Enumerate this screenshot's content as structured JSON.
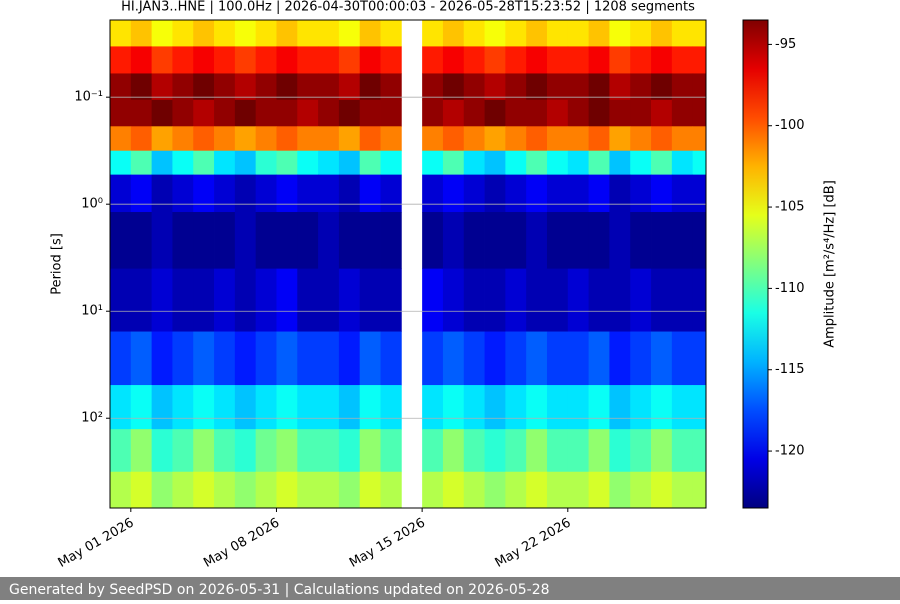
{
  "chart_data": {
    "type": "spectrogram",
    "title": "HI.JAN3..HNE | 100.0Hz | 2026-04-30T00:00:03 - 2026-05-28T15:23:52 | 1208 segments",
    "ylabel": "Period [s]",
    "colorbar_label": "Amplitude [m²/s⁴/Hz] [dB]",
    "footer": "Generated by SeedPSD on 2026-05-31 | Calculations updated on 2026-05-28",
    "colormap": "jet",
    "yscale": "log",
    "grid": true,
    "xlim": [
      "2026-04-30T00:00:03",
      "2026-05-28T15:23:52"
    ],
    "xticks": [
      {
        "value": "2026-05-01",
        "label": "May 01 2026"
      },
      {
        "value": "2026-05-08",
        "label": "May 08 2026"
      },
      {
        "value": "2026-05-15",
        "label": "May 15 2026"
      },
      {
        "value": "2026-05-22",
        "label": "May 22 2026"
      }
    ],
    "ylim": [
      690,
      0.019
    ],
    "yticks": [
      {
        "value": 0.1,
        "label": "10⁻¹"
      },
      {
        "value": 1,
        "label": "10⁰"
      },
      {
        "value": 10,
        "label": "10¹"
      },
      {
        "value": 100,
        "label": "10²"
      }
    ],
    "zlim": [
      -123.5,
      -93.5
    ],
    "zticks": [
      -95,
      -100,
      -105,
      -110,
      -115,
      -120
    ],
    "x": [
      "2026-04-30",
      "2026-05-01",
      "2026-05-02",
      "2026-05-03",
      "2026-05-04",
      "2026-05-05",
      "2026-05-06",
      "2026-05-07",
      "2026-05-08",
      "2026-05-09",
      "2026-05-10",
      "2026-05-11",
      "2026-05-12",
      "2026-05-13",
      "2026-05-14",
      "2026-05-15",
      "2026-05-16",
      "2026-05-17",
      "2026-05-18",
      "2026-05-19",
      "2026-05-20",
      "2026-05-21",
      "2026-05-22",
      "2026-05-23",
      "2026-05-24",
      "2026-05-25",
      "2026-05-26",
      "2026-05-27",
      "2026-05-28"
    ],
    "periods": [
      0.025,
      0.045,
      0.08,
      0.14,
      0.25,
      0.4,
      0.7,
      2,
      8,
      30,
      80,
      200,
      500
    ],
    "z": [
      [
        -104,
        -103,
        -105,
        -104,
        -103,
        -104,
        -105,
        -104,
        -103,
        -104,
        -104,
        -105,
        -103,
        -104,
        null,
        -104,
        -103,
        -104,
        -105,
        -104,
        -103,
        -104,
        -104,
        -103,
        -105,
        -104,
        -103,
        -104,
        -104
      ],
      [
        -98,
        -97,
        -99,
        -98,
        -97,
        -98,
        -99,
        -98,
        -97,
        -98,
        -98,
        -99,
        -97,
        -98,
        null,
        -98,
        -97,
        -98,
        -99,
        -98,
        -97,
        -98,
        -98,
        -97,
        -99,
        -98,
        -97,
        -98,
        -98
      ],
      [
        -94,
        -93,
        -95,
        -94,
        -93,
        -94,
        -95,
        -94,
        -93,
        -94,
        -94,
        -95,
        -93,
        -94,
        null,
        -94,
        -93,
        -94,
        -95,
        -94,
        -93,
        -94,
        -94,
        -93,
        -95,
        -94,
        -93,
        -94,
        -94
      ],
      [
        -94,
        -94,
        -93,
        -94,
        -95,
        -94,
        -93,
        -94,
        -94,
        -95,
        -94,
        -93,
        -94,
        -94,
        null,
        -94,
        -95,
        -94,
        -93,
        -94,
        -94,
        -95,
        -94,
        -93,
        -94,
        -94,
        -95,
        -94,
        -94
      ],
      [
        -101,
        -100,
        -102,
        -101,
        -100,
        -101,
        -102,
        -101,
        -100,
        -101,
        -101,
        -102,
        -100,
        -101,
        null,
        -101,
        -100,
        -101,
        -102,
        -101,
        -100,
        -101,
        -101,
        -100,
        -102,
        -101,
        -100,
        -101,
        -101
      ],
      [
        -112,
        -110,
        -114,
        -112,
        -110,
        -113,
        -114,
        -111,
        -110,
        -112,
        -113,
        -114,
        -110,
        -112,
        null,
        -112,
        -110,
        -113,
        -114,
        -112,
        -110,
        -112,
        -113,
        -110,
        -114,
        -112,
        -110,
        -113,
        -112
      ],
      [
        -121,
        -120,
        -122,
        -121,
        -120,
        -121,
        -122,
        -121,
        -120,
        -121,
        -121,
        -122,
        -120,
        -121,
        null,
        -121,
        -120,
        -121,
        -122,
        -121,
        -120,
        -121,
        -121,
        -120,
        -122,
        -121,
        -120,
        -121,
        -121
      ],
      [
        -123,
        -123,
        -122,
        -123,
        -123,
        -123,
        -122,
        -123,
        -123,
        -123,
        -122,
        -123,
        -123,
        -123,
        null,
        -123,
        -122,
        -123,
        -123,
        -123,
        -122,
        -123,
        -123,
        -123,
        -122,
        -123,
        -123,
        -123,
        -123
      ],
      [
        -122,
        -122,
        -121,
        -122,
        -122,
        -121,
        -122,
        -121,
        -120,
        -122,
        -122,
        -121,
        -122,
        -122,
        null,
        -120,
        -121,
        -122,
        -122,
        -121,
        -122,
        -122,
        -121,
        -122,
        -122,
        -121,
        -122,
        -122,
        -122
      ],
      [
        -118,
        -117,
        -119,
        -118,
        -117,
        -118,
        -119,
        -118,
        -117,
        -118,
        -118,
        -119,
        -117,
        -118,
        null,
        -118,
        -117,
        -118,
        -119,
        -118,
        -117,
        -118,
        -118,
        -117,
        -119,
        -118,
        -117,
        -118,
        -118
      ],
      [
        -113,
        -112,
        -114,
        -113,
        -112,
        -113,
        -114,
        -113,
        -112,
        -113,
        -113,
        -114,
        -112,
        -113,
        null,
        -113,
        -112,
        -113,
        -114,
        -113,
        -112,
        -113,
        -113,
        -112,
        -114,
        -113,
        -112,
        -113,
        -113
      ],
      [
        -110,
        -108,
        -111,
        -110,
        -108,
        -110,
        -111,
        -109,
        -108,
        -110,
        -110,
        -111,
        -108,
        -110,
        null,
        -110,
        -108,
        -110,
        -111,
        -110,
        -108,
        -110,
        -110,
        -108,
        -111,
        -110,
        -108,
        -110,
        -110
      ],
      [
        -107,
        -106,
        -108,
        -107,
        -106,
        -107,
        -108,
        -107,
        -106,
        -107,
        -107,
        -108,
        -106,
        -107,
        null,
        -107,
        -106,
        -107,
        -108,
        -107,
        -106,
        -107,
        -107,
        -106,
        -108,
        -107,
        -106,
        -107,
        -107
      ]
    ]
  }
}
